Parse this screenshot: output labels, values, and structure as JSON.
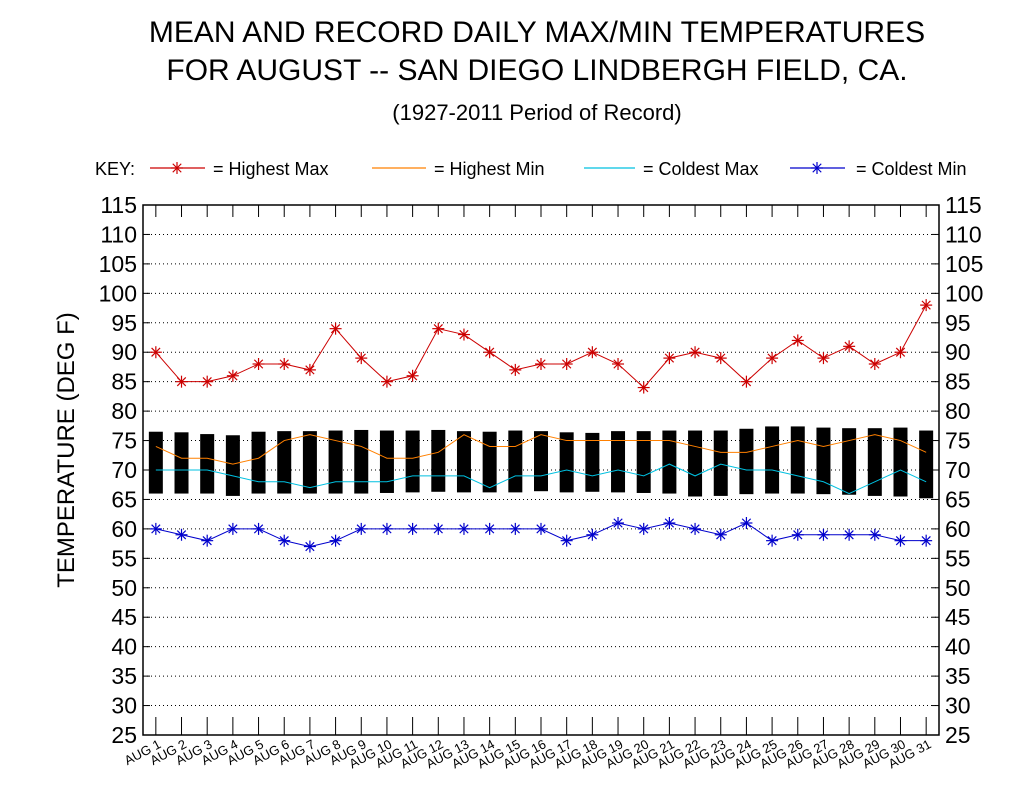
{
  "chart_data": {
    "type": "line",
    "title_line1": "MEAN AND RECORD DAILY MAX/MIN TEMPERATURES",
    "title_line2": "FOR AUGUST -- SAN DIEGO LINDBERGH FIELD, CA.",
    "subtitle": "(1927-2011 Period of Record)",
    "ylabel": "TEMPERATURE (DEG F)",
    "xlabel": "",
    "ylim": [
      25,
      115
    ],
    "yticks": [
      "25",
      "30",
      "35",
      "40",
      "45",
      "50",
      "55",
      "60",
      "65",
      "70",
      "75",
      "80",
      "85",
      "90",
      "95",
      "100",
      "105",
      "110",
      "115"
    ],
    "grid": "horizontal dotted",
    "legend": {
      "placement": "top",
      "key_label": "KEY:",
      "items": [
        {
          "label": "= Highest Max",
          "color": "#cc0000",
          "marker": "asterisk"
        },
        {
          "label": "= Highest Min",
          "color": "#ff8000",
          "marker": "none"
        },
        {
          "label": "= Coldest Max",
          "color": "#00c0e0",
          "marker": "none"
        },
        {
          "label": "= Coldest Min",
          "color": "#0000cc",
          "marker": "asterisk"
        }
      ]
    },
    "categories": [
      "AUG 1",
      "AUG 2",
      "AUG 3",
      "AUG 4",
      "AUG 5",
      "AUG 6",
      "AUG 7",
      "AUG 8",
      "AUG 9",
      "AUG 10",
      "AUG 11",
      "AUG 12",
      "AUG 13",
      "AUG 14",
      "AUG 15",
      "AUG 16",
      "AUG 17",
      "AUG 18",
      "AUG 19",
      "AUG 20",
      "AUG 21",
      "AUG 22",
      "AUG 23",
      "AUG 24",
      "AUG 25",
      "AUG 26",
      "AUG 27",
      "AUG 28",
      "AUG 29",
      "AUG 30",
      "AUG 31"
    ],
    "mean_bars": {
      "color": "#000000",
      "max": [
        76.5,
        76.4,
        76.1,
        75.9,
        76.5,
        76.6,
        76.6,
        76.7,
        76.8,
        76.7,
        76.7,
        76.8,
        76.6,
        76.5,
        76.7,
        76.6,
        76.4,
        76.3,
        76.6,
        76.6,
        76.7,
        76.7,
        76.7,
        77.0,
        77.4,
        77.4,
        77.2,
        77.1,
        77.1,
        77.2,
        76.7
      ],
      "min": [
        66.0,
        66.0,
        66.0,
        65.6,
        66.0,
        66.0,
        66.0,
        66.0,
        66.0,
        66.1,
        66.2,
        66.3,
        66.2,
        66.2,
        66.2,
        66.4,
        66.2,
        66.3,
        66.2,
        66.1,
        66.0,
        65.5,
        65.6,
        65.9,
        66.0,
        66.0,
        65.9,
        65.8,
        65.6,
        65.5,
        65.2
      ]
    },
    "series": [
      {
        "name": "Highest Max",
        "color": "#cc0000",
        "marker": "asterisk",
        "values": [
          90,
          85,
          85,
          86,
          88,
          88,
          87,
          94,
          89,
          85,
          86,
          94,
          93,
          90,
          87,
          88,
          88,
          90,
          88,
          84,
          89,
          90,
          89,
          85,
          89,
          92,
          89,
          91,
          88,
          90,
          98
        ]
      },
      {
        "name": "Highest Min",
        "color": "#ff8000",
        "marker": "none",
        "values": [
          74,
          72,
          72,
          71,
          72,
          75,
          76,
          75,
          74,
          72,
          72,
          73,
          76,
          74,
          74,
          76,
          75,
          75,
          75,
          75,
          75,
          74,
          73,
          73,
          74,
          75,
          74,
          75,
          76,
          75,
          73
        ]
      },
      {
        "name": "Coldest Max",
        "color": "#00c0e0",
        "marker": "none",
        "values": [
          70,
          70,
          70,
          69,
          68,
          68,
          67,
          68,
          68,
          68,
          69,
          69,
          69,
          67,
          69,
          69,
          70,
          69,
          70,
          69,
          71,
          69,
          71,
          70,
          70,
          69,
          68,
          66,
          68,
          70,
          68
        ]
      },
      {
        "name": "Coldest Min",
        "color": "#0000cc",
        "marker": "asterisk",
        "values": [
          60,
          59,
          58,
          60,
          60,
          58,
          57,
          58,
          60,
          60,
          60,
          60,
          60,
          60,
          60,
          60,
          58,
          59,
          61,
          60,
          61,
          60,
          59,
          61,
          58,
          59,
          59,
          59,
          59,
          58,
          58
        ]
      }
    ]
  }
}
